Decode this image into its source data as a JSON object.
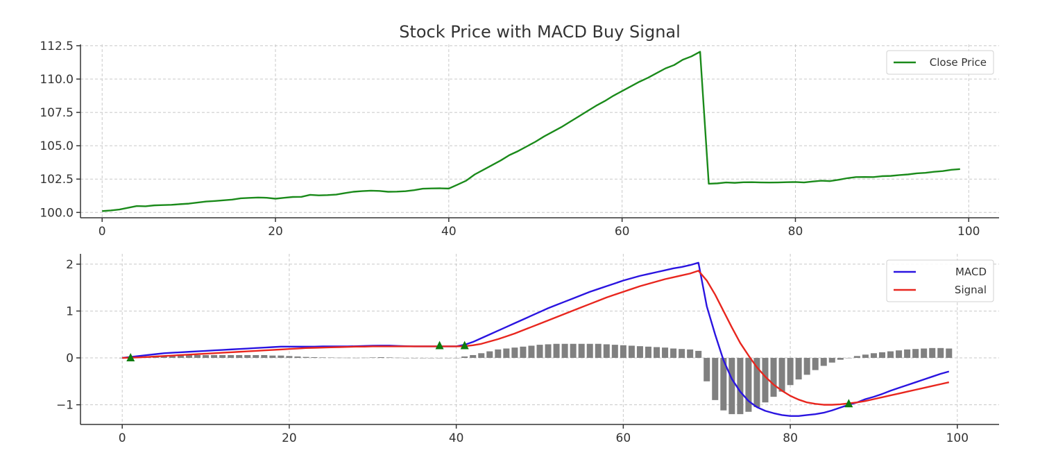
{
  "chart_data": [
    {
      "type": "line",
      "title": "Stock Price with MACD Buy Signal",
      "xlabel": "",
      "ylabel": "",
      "xlim": [
        -2.5,
        103.5
      ],
      "ylim": [
        99.6,
        112.6
      ],
      "x_ticks": [
        0,
        20,
        40,
        60,
        80,
        100
      ],
      "x_tick_labels": [
        "0",
        "20",
        "40",
        "60",
        "80",
        "100"
      ],
      "y_ticks": [
        100.0,
        102.5,
        105.0,
        107.5,
        110.0,
        112.5
      ],
      "y_tick_labels": [
        "100.0",
        "102.5",
        "105.0",
        "107.5",
        "110.0",
        "112.5"
      ],
      "grid": true,
      "legend_position": "top-right",
      "series": [
        {
          "name": "Close Price",
          "color": "#1a8a1a",
          "x": [
            0,
            1,
            2,
            3,
            4,
            5,
            6,
            7,
            8,
            9,
            10,
            11,
            12,
            13,
            14,
            15,
            16,
            17,
            18,
            19,
            20,
            21,
            22,
            23,
            24,
            25,
            26,
            27,
            28,
            29,
            30,
            31,
            32,
            33,
            34,
            35,
            36,
            37,
            38,
            39,
            40,
            41,
            42,
            43,
            44,
            45,
            46,
            47,
            48,
            49,
            50,
            51,
            52,
            53,
            54,
            55,
            56,
            57,
            58,
            59,
            60,
            61,
            62,
            63,
            64,
            65,
            66,
            67,
            68,
            69,
            70,
            71,
            72,
            73,
            74,
            75,
            76,
            77,
            78,
            79,
            80,
            81,
            82,
            83,
            84,
            85,
            86,
            87,
            88,
            89,
            90,
            91,
            92,
            93,
            94,
            95,
            96,
            97,
            98,
            99
          ],
          "values": [
            100.1,
            100.15,
            100.22,
            100.35,
            100.48,
            100.46,
            100.53,
            100.55,
            100.57,
            100.62,
            100.66,
            100.74,
            100.82,
            100.86,
            100.91,
            100.96,
            101.06,
            101.09,
            101.12,
            101.1,
            101.03,
            101.1,
            101.16,
            101.17,
            101.32,
            101.28,
            101.3,
            101.34,
            101.45,
            101.55,
            101.6,
            101.63,
            101.61,
            101.55,
            101.56,
            101.59,
            101.67,
            101.78,
            101.8,
            101.81,
            101.79,
            102.08,
            102.38,
            102.85,
            103.2,
            103.55,
            103.9,
            104.3,
            104.6,
            104.95,
            105.3,
            105.7,
            106.05,
            106.4,
            106.8,
            107.2,
            107.6,
            108.0,
            108.35,
            108.75,
            109.1,
            109.45,
            109.8,
            110.1,
            110.45,
            110.8,
            111.05,
            111.45,
            111.7,
            112.05,
            102.15,
            102.18,
            102.25,
            102.22,
            102.26,
            102.27,
            102.25,
            102.24,
            102.25,
            102.27,
            102.28,
            102.25,
            102.32,
            102.38,
            102.35,
            102.45,
            102.57,
            102.65,
            102.66,
            102.65,
            102.72,
            102.74,
            102.8,
            102.85,
            102.93,
            102.97,
            103.05,
            103.1,
            103.2,
            103.25
          ]
        }
      ]
    },
    {
      "type": "line",
      "title": "",
      "xlabel": "",
      "ylabel": "",
      "xlim": [
        -5,
        105
      ],
      "ylim": [
        -1.42,
        2.22
      ],
      "x_ticks": [
        0,
        20,
        40,
        60,
        80,
        100
      ],
      "x_tick_labels": [
        "0",
        "20",
        "40",
        "60",
        "80",
        "100"
      ],
      "y_ticks": [
        -1,
        0,
        1,
        2
      ],
      "y_tick_labels": [
        "−1",
        "0",
        "1",
        "2"
      ],
      "grid": true,
      "legend_position": "top-right",
      "series": [
        {
          "name": "MACD",
          "color": "#2a14e0",
          "x": [
            0,
            1,
            2,
            3,
            4,
            5,
            6,
            7,
            8,
            9,
            10,
            11,
            12,
            13,
            14,
            15,
            16,
            17,
            18,
            19,
            20,
            21,
            22,
            23,
            24,
            25,
            26,
            27,
            28,
            29,
            30,
            31,
            32,
            33,
            34,
            35,
            36,
            37,
            38,
            39,
            40,
            41,
            42,
            43,
            44,
            45,
            46,
            47,
            48,
            49,
            50,
            51,
            52,
            53,
            54,
            55,
            56,
            57,
            58,
            59,
            60,
            61,
            62,
            63,
            64,
            65,
            66,
            67,
            68,
            69,
            70,
            71,
            72,
            73,
            74,
            75,
            76,
            77,
            78,
            79,
            80,
            81,
            82,
            83,
            84,
            85,
            86,
            87,
            88,
            89,
            90,
            91,
            92,
            93,
            94,
            95,
            96,
            97,
            98,
            99
          ],
          "values": [
            0.0,
            0.02,
            0.04,
            0.06,
            0.08,
            0.1,
            0.11,
            0.12,
            0.13,
            0.14,
            0.15,
            0.16,
            0.17,
            0.18,
            0.19,
            0.2,
            0.21,
            0.22,
            0.23,
            0.24,
            0.24,
            0.24,
            0.24,
            0.24,
            0.245,
            0.245,
            0.245,
            0.245,
            0.25,
            0.255,
            0.26,
            0.262,
            0.262,
            0.255,
            0.25,
            0.245,
            0.245,
            0.245,
            0.245,
            0.245,
            0.245,
            0.28,
            0.34,
            0.42,
            0.5,
            0.58,
            0.66,
            0.74,
            0.82,
            0.9,
            0.98,
            1.06,
            1.13,
            1.2,
            1.27,
            1.34,
            1.41,
            1.47,
            1.53,
            1.59,
            1.65,
            1.7,
            1.75,
            1.79,
            1.83,
            1.87,
            1.91,
            1.94,
            1.98,
            2.03,
            1.1,
            0.5,
            -0.05,
            -0.45,
            -0.72,
            -0.92,
            -1.05,
            -1.13,
            -1.18,
            -1.22,
            -1.24,
            -1.24,
            -1.22,
            -1.2,
            -1.17,
            -1.12,
            -1.06,
            -1.0,
            -0.95,
            -0.88,
            -0.83,
            -0.77,
            -0.7,
            -0.64,
            -0.58,
            -0.52,
            -0.46,
            -0.4,
            -0.34,
            -0.29
          ]
        },
        {
          "name": "Signal",
          "color": "#e8261e",
          "x": [
            0,
            1,
            2,
            3,
            4,
            5,
            6,
            7,
            8,
            9,
            10,
            11,
            12,
            13,
            14,
            15,
            16,
            17,
            18,
            19,
            20,
            21,
            22,
            23,
            24,
            25,
            26,
            27,
            28,
            29,
            30,
            31,
            32,
            33,
            34,
            35,
            36,
            37,
            38,
            39,
            40,
            41,
            42,
            43,
            44,
            45,
            46,
            47,
            48,
            49,
            50,
            51,
            52,
            53,
            54,
            55,
            56,
            57,
            58,
            59,
            60,
            61,
            62,
            63,
            64,
            65,
            66,
            67,
            68,
            69,
            70,
            71,
            72,
            73,
            74,
            75,
            76,
            77,
            78,
            79,
            80,
            81,
            82,
            83,
            84,
            85,
            86,
            87,
            88,
            89,
            90,
            91,
            92,
            93,
            94,
            95,
            96,
            97,
            98,
            99
          ],
          "values": [
            0.0,
            0.005,
            0.01,
            0.02,
            0.03,
            0.04,
            0.05,
            0.06,
            0.07,
            0.08,
            0.09,
            0.1,
            0.11,
            0.12,
            0.13,
            0.14,
            0.15,
            0.16,
            0.17,
            0.18,
            0.19,
            0.2,
            0.21,
            0.215,
            0.22,
            0.225,
            0.23,
            0.235,
            0.24,
            0.24,
            0.245,
            0.245,
            0.245,
            0.245,
            0.245,
            0.245,
            0.245,
            0.245,
            0.245,
            0.245,
            0.245,
            0.25,
            0.27,
            0.3,
            0.35,
            0.4,
            0.46,
            0.52,
            0.59,
            0.66,
            0.73,
            0.8,
            0.87,
            0.94,
            1.01,
            1.08,
            1.15,
            1.22,
            1.29,
            1.35,
            1.41,
            1.47,
            1.53,
            1.58,
            1.63,
            1.68,
            1.72,
            1.76,
            1.8,
            1.86,
            1.65,
            1.35,
            1.0,
            0.65,
            0.32,
            0.05,
            -0.2,
            -0.4,
            -0.57,
            -0.7,
            -0.81,
            -0.89,
            -0.95,
            -0.98,
            -1.0,
            -1.0,
            -0.99,
            -0.97,
            -0.95,
            -0.92,
            -0.88,
            -0.84,
            -0.8,
            -0.76,
            -0.72,
            -0.68,
            -0.64,
            -0.6,
            -0.56,
            -0.52
          ]
        },
        {
          "name": "",
          "type": "bar",
          "color": "#808080",
          "x": [
            0,
            1,
            2,
            3,
            4,
            5,
            6,
            7,
            8,
            9,
            10,
            11,
            12,
            13,
            14,
            15,
            16,
            17,
            18,
            19,
            20,
            21,
            22,
            23,
            24,
            25,
            26,
            27,
            28,
            29,
            30,
            31,
            32,
            33,
            34,
            35,
            36,
            37,
            38,
            39,
            40,
            41,
            42,
            43,
            44,
            45,
            46,
            47,
            48,
            49,
            50,
            51,
            52,
            53,
            54,
            55,
            56,
            57,
            58,
            59,
            60,
            61,
            62,
            63,
            64,
            65,
            66,
            67,
            68,
            69,
            70,
            71,
            72,
            73,
            74,
            75,
            76,
            77,
            78,
            79,
            80,
            81,
            82,
            83,
            84,
            85,
            86,
            87,
            88,
            89,
            90,
            91,
            92,
            93,
            94,
            95,
            96,
            97,
            98,
            99
          ],
          "values": [
            0.0,
            0.01,
            0.02,
            0.03,
            0.04,
            0.05,
            0.06,
            0.06,
            0.06,
            0.06,
            0.06,
            0.06,
            0.06,
            0.06,
            0.06,
            0.06,
            0.06,
            0.06,
            0.05,
            0.05,
            0.04,
            0.03,
            0.02,
            0.015,
            0.01,
            0.008,
            0.005,
            0.004,
            0.003,
            0.005,
            0.01,
            0.015,
            0.01,
            0.005,
            -0.002,
            -0.005,
            0.0,
            0.0,
            0.0,
            0.0,
            0.0,
            0.03,
            0.06,
            0.1,
            0.14,
            0.18,
            0.2,
            0.22,
            0.24,
            0.26,
            0.28,
            0.29,
            0.3,
            0.3,
            0.3,
            0.3,
            0.3,
            0.3,
            0.29,
            0.28,
            0.27,
            0.26,
            0.25,
            0.24,
            0.23,
            0.22,
            0.2,
            0.19,
            0.18,
            0.15,
            -0.5,
            -0.9,
            -1.12,
            -1.2,
            -1.2,
            -1.15,
            -1.05,
            -0.95,
            -0.83,
            -0.72,
            -0.58,
            -0.46,
            -0.36,
            -0.26,
            -0.17,
            -0.1,
            -0.04,
            0.0,
            0.04,
            0.07,
            0.1,
            0.12,
            0.14,
            0.16,
            0.18,
            0.19,
            0.2,
            0.21,
            0.21,
            0.2
          ]
        },
        {
          "name": "",
          "type": "scatter",
          "marker": "triangle-up",
          "color": "#0e7a0e",
          "x": [
            1,
            38,
            41,
            87
          ],
          "values": [
            0.0,
            0.26,
            0.26,
            -0.98
          ]
        }
      ]
    }
  ]
}
